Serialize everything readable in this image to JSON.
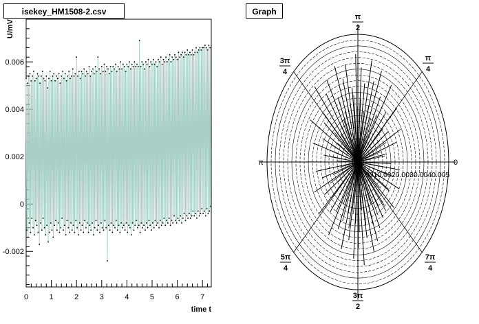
{
  "canvas_titles": {
    "left": "isekey_HM1508-2.csv",
    "right": "Graph"
  },
  "colors": {
    "series": "#a8cfc6",
    "frame": "#000000",
    "marker": "#000000"
  },
  "chart_data": [
    {
      "type": "line",
      "title": "isekey_HM1508-2.csv",
      "xlabel": "time t",
      "ylabel": "U/mV",
      "xlim": [
        0,
        7.35
      ],
      "ylim": [
        -0.0035,
        0.0078
      ],
      "x_ticks": [
        0,
        1,
        2,
        3,
        4,
        5,
        6,
        7
      ],
      "x_tick_labels": [
        "0",
        "1",
        "2",
        "3",
        "4",
        "5",
        "6",
        "7"
      ],
      "y_ticks": [
        -0.002,
        0,
        0.002,
        0.004,
        0.006
      ],
      "y_tick_labels": [
        "-0.002",
        "0",
        "0.002",
        "0.004",
        "0.006"
      ],
      "grid": false,
      "series": [
        {
          "name": "",
          "sample_interval": 0.05,
          "upper": [
            0.0053,
            0.0051,
            0.0054,
            0.0055,
            0.0052,
            0.0054,
            0.0056,
            0.0052,
            0.0053,
            0.0055,
            0.0054,
            0.0051,
            0.0054,
            0.0056,
            0.0053,
            0.0052,
            0.0054,
            0.0049,
            0.0053,
            0.0056,
            0.0052,
            0.0054,
            0.0055,
            0.0052,
            0.0054,
            0.0053,
            0.0055,
            0.0051,
            0.0054,
            0.0056,
            0.0053,
            0.0055,
            0.0052,
            0.0054,
            0.0056,
            0.0053,
            0.0054,
            0.0057,
            0.0054,
            0.0055,
            0.0062,
            0.0054,
            0.0056,
            0.0053,
            0.0056,
            0.0055,
            0.0057,
            0.0054,
            0.0056,
            0.0055,
            0.0058,
            0.0054,
            0.0056,
            0.0057,
            0.0055,
            0.0058,
            0.0056,
            0.0062,
            0.0057,
            0.0055,
            0.0058,
            0.0056,
            0.0059,
            0.0056,
            0.0058,
            0.0057,
            0.0055,
            0.0058,
            0.0056,
            0.0058,
            0.0057,
            0.0059,
            0.0056,
            0.0058,
            0.0057,
            0.006,
            0.0057,
            0.0059,
            0.0058,
            0.0056,
            0.0059,
            0.0058,
            0.006,
            0.0057,
            0.0059,
            0.0058,
            0.006,
            0.0058,
            0.0059,
            0.0058,
            0.0069,
            0.0058,
            0.006,
            0.0059,
            0.0057,
            0.006,
            0.0059,
            0.0061,
            0.0058,
            0.006,
            0.0059,
            0.0061,
            0.0059,
            0.006,
            0.0058,
            0.0061,
            0.006,
            0.0062,
            0.0059,
            0.0061,
            0.006,
            0.0062,
            0.006,
            0.0061,
            0.0063,
            0.006,
            0.0062,
            0.0061,
            0.0063,
            0.0062,
            0.0061,
            0.0064,
            0.0062,
            0.0063,
            0.0064,
            0.0062,
            0.0064,
            0.0063,
            0.0065,
            0.0063,
            0.0064,
            0.0063,
            0.0065,
            0.0063,
            0.0064,
            0.0066,
            0.0064,
            0.0065,
            0.0066,
            0.0065,
            0.0066,
            0.0066,
            0.0067,
            0.0066,
            0.0065,
            0.0067,
            0.0066
          ],
          "lower": [
            -0.0011,
            -0.0014,
            -0.0008,
            -0.0012,
            -0.0006,
            -0.001,
            -0.0013,
            -0.0007,
            -0.0009,
            -0.0012,
            -0.0017,
            -0.0008,
            -0.0011,
            -0.0006,
            -0.001,
            -0.0013,
            -0.0009,
            -0.0016,
            -0.0012,
            -0.0008,
            -0.0011,
            -0.0014,
            -0.0009,
            -0.0007,
            -0.0011,
            -0.0008,
            -0.0012,
            -0.001,
            -0.0006,
            -0.0011,
            -0.0009,
            -0.0013,
            -0.0007,
            -0.001,
            -0.0012,
            -0.0008,
            -0.0011,
            -0.0009,
            -0.0012,
            -0.0007,
            -0.001,
            -0.0013,
            -0.0008,
            -0.0011,
            -0.0009,
            -0.0012,
            -0.0007,
            -0.001,
            -0.0008,
            -0.0012,
            -0.0009,
            -0.0011,
            -0.0008,
            -0.0013,
            -0.001,
            -0.0007,
            -0.0011,
            -0.0009,
            -0.0012,
            -0.0008,
            -0.001,
            -0.0011,
            -0.0007,
            -0.001,
            -0.0024,
            -0.0009,
            -0.0011,
            -0.0008,
            -0.0012,
            -0.0009,
            -0.001,
            -0.0007,
            -0.0011,
            -0.0009,
            -0.0012,
            -0.0008,
            -0.001,
            -0.0009,
            -0.0011,
            -0.0008,
            -0.0012,
            -0.0009,
            -0.001,
            -0.0013,
            -0.0008,
            -0.0011,
            -0.0009,
            -0.0007,
            -0.001,
            -0.0009,
            -0.0012,
            -0.0008,
            -0.001,
            -0.0009,
            -0.0011,
            -0.0008,
            -0.001,
            -0.0007,
            -0.0009,
            -0.0011,
            -0.0008,
            -0.001,
            -0.0007,
            -0.0009,
            -0.0008,
            -0.001,
            -0.0007,
            -0.0009,
            -0.0008,
            -0.0006,
            -0.0009,
            -0.0007,
            -0.0008,
            -0.0006,
            -0.0009,
            -0.0007,
            -0.0008,
            -0.0005,
            -0.0007,
            -0.0008,
            -0.0006,
            -0.0007,
            -0.0005,
            -0.0008,
            -0.0006,
            -0.0004,
            -0.0007,
            -0.0005,
            -0.0006,
            -0.0004,
            -0.0006,
            -0.0005,
            -0.0003,
            -0.0005,
            -0.0004,
            -0.0006,
            -0.0003,
            -0.0005,
            -0.0004,
            -0.0002,
            -0.0004,
            -0.0003,
            -0.0005,
            -0.0002,
            -0.0004,
            -0.0003,
            -0.0001
          ]
        }
      ]
    },
    {
      "type": "scatter",
      "subtype": "polar",
      "title": "Graph",
      "angle_labels": {
        "deg0": "0",
        "deg45": "π/4",
        "deg90": "π/2",
        "deg135": "3π/4",
        "deg180": "π",
        "deg225": "5π/4",
        "deg270": "3π/2",
        "deg315": "7π/4"
      },
      "radial_tick_text": "0.0010.0020.0030.0040.005",
      "rmax": 0.0058,
      "angular_divisions": 8,
      "series": [
        {
          "name": "",
          "points": [
            [
              0.2,
              0.0018
            ],
            [
              0.35,
              0.0026
            ],
            [
              0.5,
              0.0031
            ],
            [
              0.62,
              0.0024
            ],
            [
              0.78,
              0.0035
            ],
            [
              0.9,
              0.0029
            ],
            [
              1.02,
              0.0041
            ],
            [
              1.12,
              0.0033
            ],
            [
              1.22,
              0.0044
            ],
            [
              1.3,
              0.0038
            ],
            [
              1.38,
              0.0047
            ],
            [
              1.45,
              0.0036
            ],
            [
              1.52,
              0.0043
            ],
            [
              1.6,
              0.0049
            ],
            [
              1.68,
              0.0034
            ],
            [
              1.75,
              0.0045
            ],
            [
              1.82,
              0.0039
            ],
            [
              1.9,
              0.0046
            ],
            [
              1.98,
              0.0032
            ],
            [
              2.06,
              0.0042
            ],
            [
              2.15,
              0.0037
            ],
            [
              2.25,
              0.0044
            ],
            [
              2.35,
              0.0031
            ],
            [
              2.45,
              0.0028
            ],
            [
              2.58,
              0.0036
            ],
            [
              2.7,
              0.0025
            ],
            [
              2.85,
              0.003
            ],
            [
              3.0,
              0.0022
            ],
            [
              3.14,
              0.0033
            ],
            [
              3.3,
              0.0027
            ],
            [
              3.45,
              0.0024
            ],
            [
              3.6,
              0.0031
            ],
            [
              3.75,
              0.0026
            ],
            [
              3.9,
              0.0034
            ],
            [
              4.05,
              0.0029
            ],
            [
              4.2,
              0.0038
            ],
            [
              4.32,
              0.0033
            ],
            [
              4.45,
              0.0041
            ],
            [
              4.55,
              0.0036
            ],
            [
              4.65,
              0.0044
            ],
            [
              4.72,
              0.0039
            ],
            [
              4.8,
              0.0047
            ],
            [
              4.88,
              0.0035
            ],
            [
              4.96,
              0.0042
            ],
            [
              5.05,
              0.0038
            ],
            [
              5.15,
              0.0033
            ],
            [
              5.28,
              0.003
            ],
            [
              5.42,
              0.0026
            ],
            [
              5.55,
              0.0031
            ],
            [
              5.7,
              0.0024
            ],
            [
              5.85,
              0.0029
            ],
            [
              6.0,
              0.0023
            ],
            [
              6.15,
              0.0027
            ],
            [
              6.25,
              0.0021
            ]
          ]
        }
      ]
    }
  ]
}
